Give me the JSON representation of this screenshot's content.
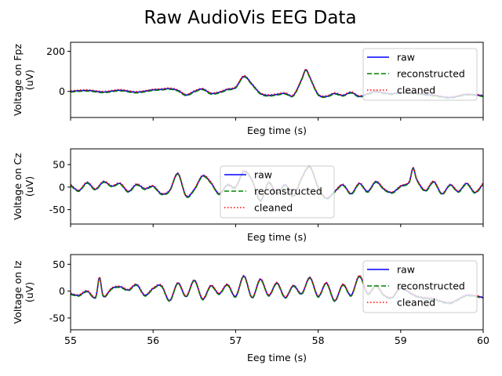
{
  "figure_title": "Raw AudioVis EEG Data",
  "chart_data": [
    {
      "type": "line",
      "title": "",
      "xlabel": "Eeg time (s)",
      "ylabel": [
        "Voltage on Fpz",
        "(uV)"
      ],
      "xlim": [
        55,
        60
      ],
      "ylim": [
        -130,
        245
      ],
      "yticks": [
        0,
        200
      ],
      "xticks": [
        55,
        56,
        57,
        58,
        59,
        60
      ],
      "x_tick_labels_shown": false,
      "legend": "top-right",
      "series": [
        {
          "name": "raw",
          "color": "#0000ff",
          "style": "solid"
        },
        {
          "name": "reconstructed",
          "color": "#008000",
          "style": "dashed"
        },
        {
          "name": "cleaned",
          "color": "#ff0000",
          "style": "dotted"
        }
      ],
      "x": [
        55.0,
        55.2,
        55.4,
        55.6,
        55.8,
        56.0,
        56.1,
        56.2,
        56.3,
        56.4,
        56.5,
        56.6,
        56.7,
        56.8,
        56.9,
        57.0,
        57.1,
        57.2,
        57.3,
        57.4,
        57.5,
        57.6,
        57.7,
        57.8,
        57.85,
        57.9,
        58.0,
        58.1,
        58.2,
        58.3,
        58.4,
        58.5,
        58.6,
        58.7,
        58.8,
        58.9,
        59.0,
        59.2,
        59.4,
        59.6,
        59.8,
        60.0
      ],
      "values": [
        0,
        5,
        -3,
        6,
        -4,
        8,
        10,
        14,
        5,
        -18,
        0,
        12,
        -10,
        -5,
        10,
        20,
        75,
        35,
        -10,
        -20,
        -15,
        -10,
        -20,
        60,
        108,
        70,
        -15,
        -25,
        -10,
        -20,
        -5,
        -25,
        -12,
        0,
        -8,
        -12,
        -5,
        -10,
        -20,
        -30,
        -15,
        -22
      ]
    },
    {
      "type": "line",
      "title": "",
      "xlabel": "Eeg time (s)",
      "ylabel": [
        "Voltage on Cz",
        "(uV)"
      ],
      "xlim": [
        55,
        60
      ],
      "ylim": [
        -82,
        85
      ],
      "yticks": [
        -50,
        0,
        50
      ],
      "xticks": [
        55,
        56,
        57,
        58,
        59,
        60
      ],
      "x_tick_labels_shown": false,
      "legend": "center",
      "series": [
        {
          "name": "raw",
          "color": "#0000ff",
          "style": "solid"
        },
        {
          "name": "reconstructed",
          "color": "#008000",
          "style": "dashed"
        },
        {
          "name": "cleaned",
          "color": "#ff0000",
          "style": "dotted"
        }
      ],
      "x": [
        55.0,
        55.1,
        55.2,
        55.3,
        55.4,
        55.5,
        55.6,
        55.7,
        55.8,
        55.9,
        56.0,
        56.1,
        56.2,
        56.3,
        56.4,
        56.5,
        56.6,
        56.7,
        56.8,
        56.9,
        57.0,
        57.1,
        57.2,
        57.3,
        57.4,
        57.5,
        57.6,
        57.7,
        57.8,
        57.9,
        58.0,
        58.1,
        58.2,
        58.3,
        58.4,
        58.5,
        58.6,
        58.7,
        58.8,
        58.9,
        59.0,
        59.1,
        59.15,
        59.2,
        59.3,
        59.4,
        59.5,
        59.6,
        59.7,
        59.8,
        59.9,
        60.0
      ],
      "values": [
        5,
        -8,
        10,
        -5,
        12,
        2,
        8,
        -10,
        6,
        -4,
        2,
        -15,
        -8,
        30,
        -20,
        -5,
        25,
        10,
        -15,
        5,
        0,
        35,
        15,
        -30,
        10,
        -15,
        5,
        -20,
        20,
        45,
        0,
        -25,
        -10,
        5,
        -15,
        8,
        -10,
        12,
        -5,
        -12,
        2,
        10,
        42,
        15,
        -8,
        12,
        -15,
        5,
        -10,
        8,
        -12,
        8
      ]
    },
    {
      "type": "line",
      "title": "",
      "xlabel": "Eeg time (s)",
      "ylabel": [
        "Voltage on Iz",
        "(uV)"
      ],
      "xlim": [
        55,
        60
      ],
      "ylim": [
        -72,
        68
      ],
      "yticks": [
        -50,
        0,
        50
      ],
      "xticks": [
        55,
        56,
        57,
        58,
        59,
        60
      ],
      "x_tick_labels_shown": true,
      "legend": "top-right",
      "series": [
        {
          "name": "raw",
          "color": "#0000ff",
          "style": "solid"
        },
        {
          "name": "reconstructed",
          "color": "#008000",
          "style": "dashed"
        },
        {
          "name": "cleaned",
          "color": "#ff0000",
          "style": "dotted"
        }
      ],
      "x": [
        55.0,
        55.1,
        55.2,
        55.3,
        55.35,
        55.4,
        55.5,
        55.6,
        55.7,
        55.8,
        55.9,
        56.0,
        56.1,
        56.2,
        56.3,
        56.4,
        56.5,
        56.6,
        56.7,
        56.8,
        56.9,
        57.0,
        57.1,
        57.2,
        57.3,
        57.4,
        57.5,
        57.6,
        57.7,
        57.8,
        57.9,
        58.0,
        58.1,
        58.2,
        58.3,
        58.4,
        58.5,
        58.6,
        58.7,
        58.8,
        58.9,
        59.0,
        59.2,
        59.4,
        59.6,
        59.8,
        60.0
      ],
      "values": [
        -5,
        -8,
        0,
        -12,
        25,
        -10,
        5,
        8,
        2,
        12,
        -8,
        5,
        10,
        -18,
        15,
        -10,
        20,
        -15,
        10,
        -5,
        12,
        -10,
        28,
        -12,
        22,
        -8,
        15,
        -12,
        10,
        -5,
        25,
        -10,
        15,
        -18,
        12,
        -8,
        28,
        -5,
        10,
        -8,
        -12,
        5,
        -10,
        -15,
        -22,
        -8,
        -12
      ]
    }
  ]
}
